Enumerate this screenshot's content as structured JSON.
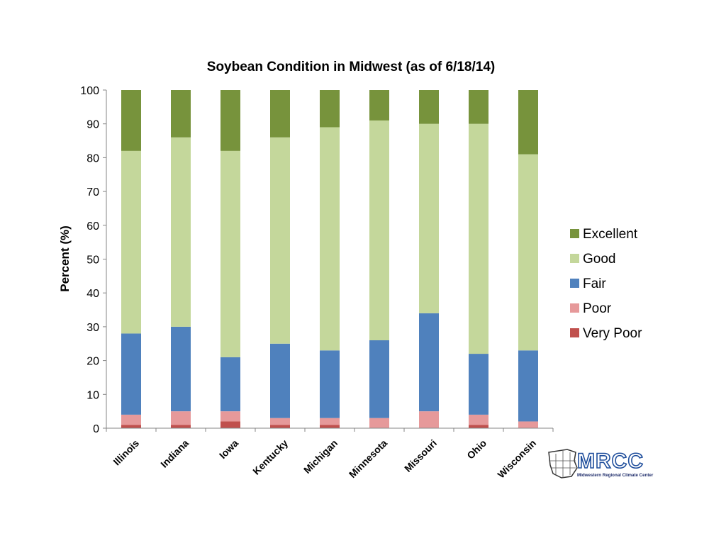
{
  "chart_data": {
    "type": "bar",
    "stacked": true,
    "title": "Soybean Condition in Midwest (as of 6/18/14)",
    "xlabel": "",
    "ylabel": "Percent (%)",
    "ylim": [
      0,
      100
    ],
    "yticks": [
      0,
      10,
      20,
      30,
      40,
      50,
      60,
      70,
      80,
      90,
      100
    ],
    "grid": false,
    "legend_position": "right",
    "categories": [
      "Illinois",
      "Indiana",
      "Iowa",
      "Kentucky",
      "Michigan",
      "Minnesota",
      "Missouri",
      "Ohio",
      "Wisconsin"
    ],
    "series": [
      {
        "name": "Very Poor",
        "color": "#c0504d",
        "values": [
          1,
          1,
          2,
          1,
          1,
          0,
          0,
          1,
          0
        ]
      },
      {
        "name": "Poor",
        "color": "#e6999a",
        "values": [
          3,
          4,
          3,
          2,
          2,
          3,
          5,
          3,
          2
        ]
      },
      {
        "name": "Fair",
        "color": "#4f81bd",
        "values": [
          24,
          25,
          16,
          22,
          20,
          23,
          29,
          18,
          21
        ]
      },
      {
        "name": "Good",
        "color": "#c4d79b",
        "values": [
          54,
          56,
          61,
          61,
          66,
          65,
          56,
          68,
          58
        ]
      },
      {
        "name": "Excellent",
        "color": "#77933c",
        "values": [
          18,
          14,
          18,
          14,
          11,
          9,
          10,
          10,
          19
        ]
      }
    ],
    "legend_order": [
      "Excellent",
      "Good",
      "Fair",
      "Poor",
      "Very Poor"
    ]
  },
  "logo": {
    "text": "MRCC",
    "subtext": "Midwestern Regional Climate Center",
    "icon": "midwest-map-icon"
  }
}
